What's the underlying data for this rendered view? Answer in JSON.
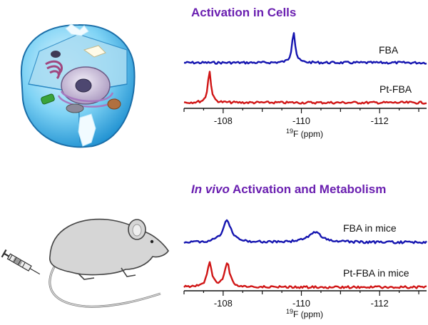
{
  "chart_data": [
    {
      "type": "line",
      "title": "Activation in Cells",
      "xlabel_sup": "19",
      "xlabel_main": "F (ppm)",
      "x_reversed": true,
      "xlim": [
        -107.0,
        -113.2
      ],
      "ticks": [
        "-108",
        "-110",
        "-112"
      ],
      "tick_values": [
        -108,
        -110,
        -112
      ],
      "series": [
        {
          "name": "FBA",
          "color": "#1515b0",
          "peaks": [
            {
              "x": -109.8,
              "height": 1.0,
              "width": 0.05
            }
          ]
        },
        {
          "name": "Pt-FBA",
          "color": "#d01515",
          "peaks": [
            {
              "x": -107.65,
              "height": 1.0,
              "width": 0.05
            }
          ]
        }
      ]
    },
    {
      "type": "line",
      "title_italic": "In vivo",
      "title_rest": " Activation and Metabolism",
      "xlabel_sup": "19",
      "xlabel_main": "F (ppm)",
      "x_reversed": true,
      "xlim": [
        -107.0,
        -113.2
      ],
      "ticks": [
        "-108",
        "-110",
        "-112"
      ],
      "tick_values": [
        -108,
        -110,
        -112
      ],
      "series": [
        {
          "name": "FBA in mice",
          "color": "#1515b0",
          "peaks": [
            {
              "x": -108.1,
              "height": 1.0,
              "width": 0.13
            },
            {
              "x": -110.35,
              "height": 0.45,
              "width": 0.22
            }
          ]
        },
        {
          "name": "Pt-FBA in mice",
          "color": "#d01515",
          "peaks": [
            {
              "x": -107.65,
              "height": 1.0,
              "width": 0.07
            },
            {
              "x": -108.1,
              "height": 1.0,
              "width": 0.08
            }
          ]
        }
      ]
    }
  ],
  "illustrations": {
    "top": "cell",
    "bottom": "mouse"
  }
}
